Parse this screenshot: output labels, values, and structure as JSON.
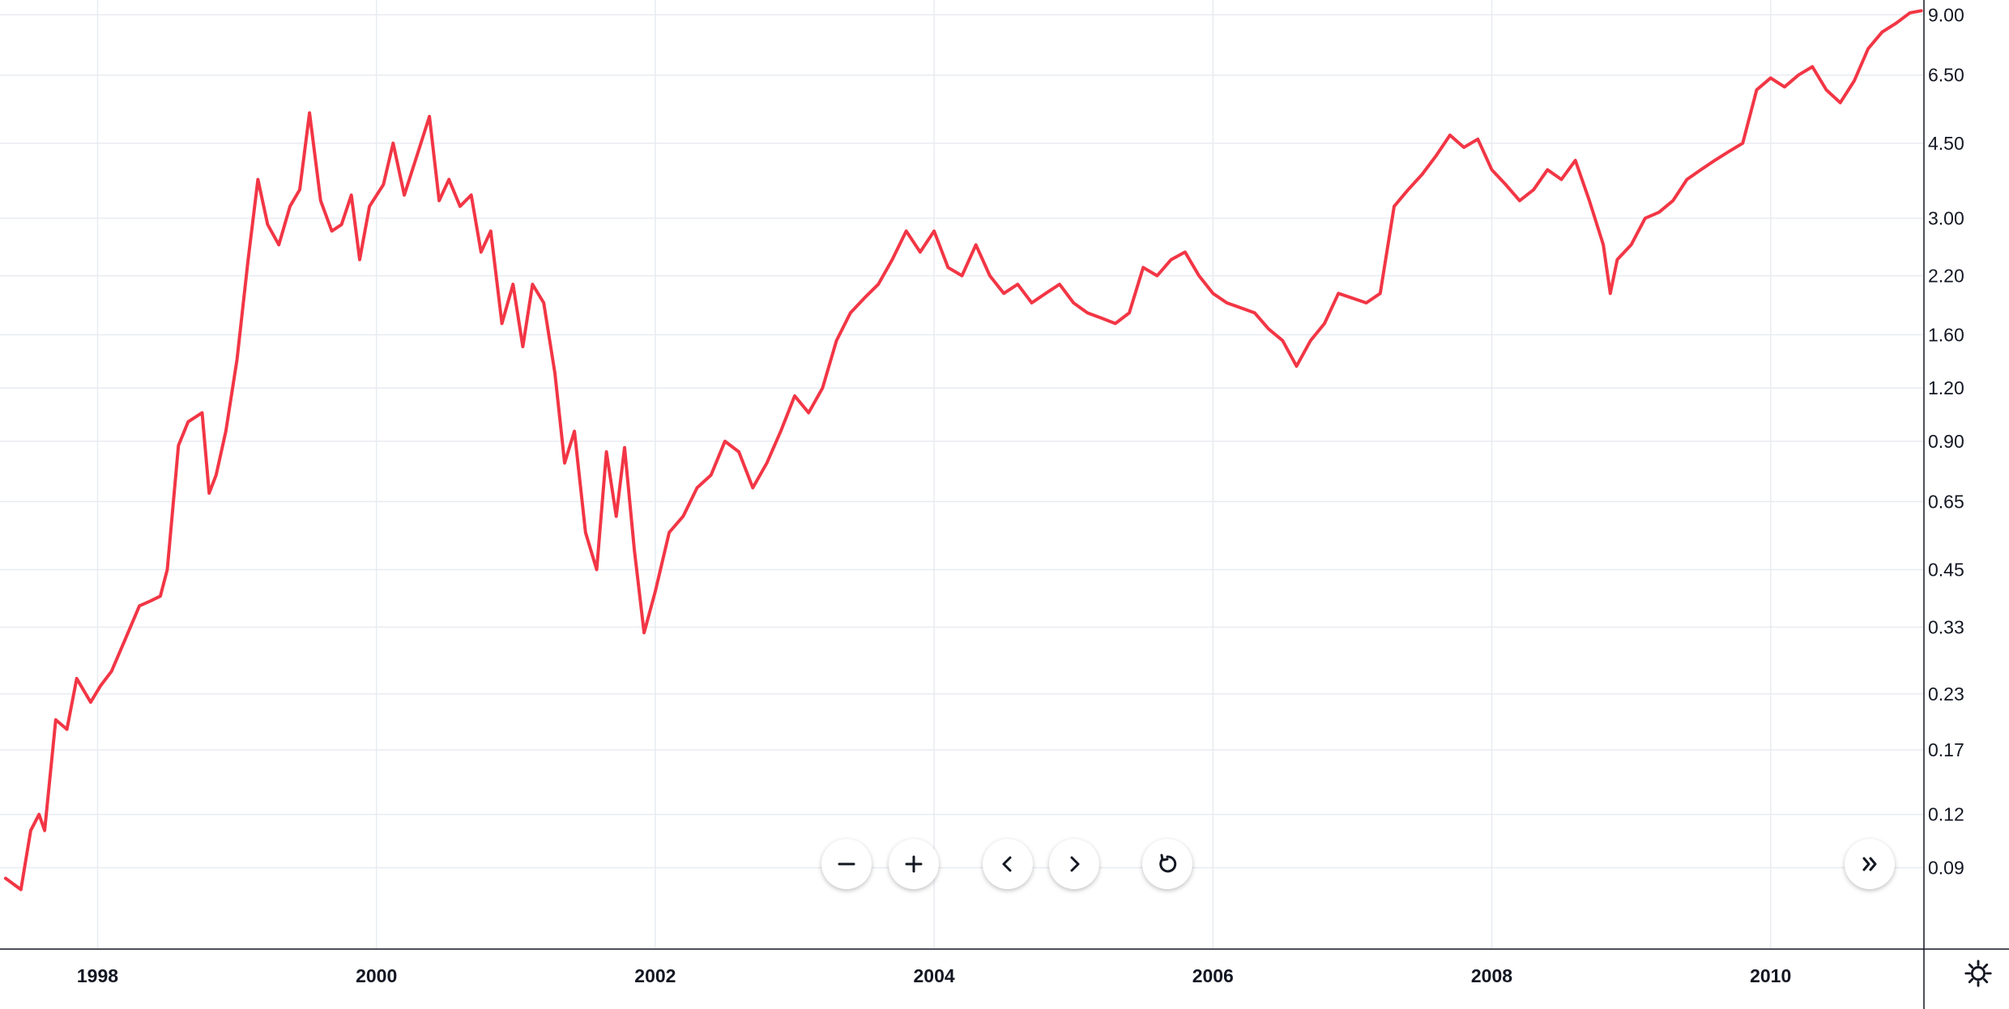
{
  "chart_data": {
    "type": "line",
    "title": "",
    "xlabel": "",
    "ylabel": "",
    "y_scale": "log",
    "ylim": [
      0.058,
      9.75
    ],
    "xlim": [
      1997.3,
      2011.1
    ],
    "grid": true,
    "legend": "none",
    "line_color": "#f23645",
    "y_ticks": [
      "9.00",
      "6.50",
      "4.50",
      "3.00",
      "2.20",
      "1.60",
      "1.20",
      "0.90",
      "0.65",
      "0.45",
      "0.33",
      "0.23",
      "0.17",
      "0.12",
      "0.09"
    ],
    "x_ticks": [
      "1998",
      "2000",
      "2002",
      "2004",
      "2006",
      "2008",
      "2010"
    ],
    "series": [
      {
        "x": [
          1997.34,
          1997.45,
          1997.52,
          1997.58,
          1997.62,
          1997.7,
          1997.78,
          1997.85,
          1997.95,
          1998.02,
          1998.1,
          1998.2,
          1998.3,
          1998.38,
          1998.45,
          1998.5,
          1998.58,
          1998.65,
          1998.75,
          1998.8,
          1998.85,
          1998.92,
          1999.0,
          1999.08,
          1999.15,
          1999.22,
          1999.3,
          1999.38,
          1999.45,
          1999.52,
          1999.6,
          1999.68,
          1999.75,
          1999.82,
          1999.88,
          1999.95,
          2000.05,
          2000.12,
          2000.2,
          2000.3,
          2000.38,
          2000.45,
          2000.52,
          2000.6,
          2000.68,
          2000.75,
          2000.82,
          2000.9,
          2000.98,
          2001.05,
          2001.12,
          2001.2,
          2001.28,
          2001.35,
          2001.42,
          2001.5,
          2001.58,
          2001.65,
          2001.72,
          2001.78,
          2001.85,
          2001.92,
          2002.0,
          2002.1,
          2002.2,
          2002.3,
          2002.4,
          2002.5,
          2002.6,
          2002.7,
          2002.8,
          2002.9,
          2003.0,
          2003.1,
          2003.2,
          2003.3,
          2003.4,
          2003.5,
          2003.6,
          2003.7,
          2003.8,
          2003.9,
          2004.0,
          2004.1,
          2004.2,
          2004.3,
          2004.4,
          2004.5,
          2004.6,
          2004.7,
          2004.8,
          2004.9,
          2005.0,
          2005.1,
          2005.2,
          2005.3,
          2005.4,
          2005.5,
          2005.6,
          2005.7,
          2005.8,
          2005.9,
          2006.0,
          2006.1,
          2006.2,
          2006.3,
          2006.4,
          2006.5,
          2006.6,
          2006.7,
          2006.8,
          2006.9,
          2007.0,
          2007.1,
          2007.2,
          2007.3,
          2007.4,
          2007.5,
          2007.6,
          2007.7,
          2007.8,
          2007.9,
          2008.0,
          2008.1,
          2008.2,
          2008.3,
          2008.4,
          2008.5,
          2008.6,
          2008.7,
          2008.8,
          2008.85,
          2008.9,
          2009.0,
          2009.1,
          2009.2,
          2009.3,
          2009.4,
          2009.5,
          2009.6,
          2009.7,
          2009.8,
          2009.9,
          2010.0,
          2010.1,
          2010.2,
          2010.3,
          2010.4,
          2010.5,
          2010.6,
          2010.7,
          2010.8,
          2010.9,
          2011.0,
          2011.08
        ],
        "y": [
          0.085,
          0.08,
          0.11,
          0.12,
          0.11,
          0.2,
          0.19,
          0.25,
          0.22,
          0.24,
          0.26,
          0.31,
          0.37,
          0.38,
          0.39,
          0.45,
          0.88,
          1.0,
          1.05,
          0.68,
          0.75,
          0.95,
          1.4,
          2.4,
          3.7,
          2.9,
          2.6,
          3.2,
          3.5,
          5.3,
          3.3,
          2.8,
          2.9,
          3.4,
          2.4,
          3.2,
          3.6,
          4.5,
          3.4,
          4.3,
          5.2,
          3.3,
          3.7,
          3.2,
          3.4,
          2.5,
          2.8,
          1.7,
          2.1,
          1.5,
          2.1,
          1.9,
          1.3,
          0.8,
          0.95,
          0.55,
          0.45,
          0.85,
          0.6,
          0.87,
          0.5,
          0.32,
          0.4,
          0.55,
          0.6,
          0.7,
          0.75,
          0.9,
          0.85,
          0.7,
          0.8,
          0.95,
          1.15,
          1.05,
          1.2,
          1.55,
          1.8,
          1.95,
          2.1,
          2.4,
          2.8,
          2.5,
          2.8,
          2.3,
          2.2,
          2.6,
          2.2,
          2.0,
          2.1,
          1.9,
          2.0,
          2.1,
          1.9,
          1.8,
          1.75,
          1.7,
          1.8,
          2.3,
          2.2,
          2.4,
          2.5,
          2.2,
          2.0,
          1.9,
          1.85,
          1.8,
          1.65,
          1.55,
          1.35,
          1.55,
          1.7,
          2.0,
          1.95,
          1.9,
          2.0,
          3.2,
          3.5,
          3.8,
          4.2,
          4.7,
          4.4,
          4.6,
          3.9,
          3.6,
          3.3,
          3.5,
          3.9,
          3.7,
          4.1,
          3.3,
          2.6,
          2.0,
          2.4,
          2.6,
          3.0,
          3.1,
          3.3,
          3.7,
          3.9,
          4.1,
          4.3,
          4.5,
          6.0,
          6.4,
          6.1,
          6.5,
          6.8,
          6.0,
          5.6,
          6.3,
          7.5,
          8.2,
          8.6,
          9.1,
          9.2
        ]
      }
    ]
  },
  "controls": {
    "zoom_out": "minus-icon",
    "zoom_in": "plus-icon",
    "scroll_left": "chevron-left-icon",
    "scroll_right": "chevron-right-icon",
    "reset": "reset-icon",
    "scroll_to_realtime": "double-chevron-right-icon",
    "settings": "gear-icon"
  }
}
